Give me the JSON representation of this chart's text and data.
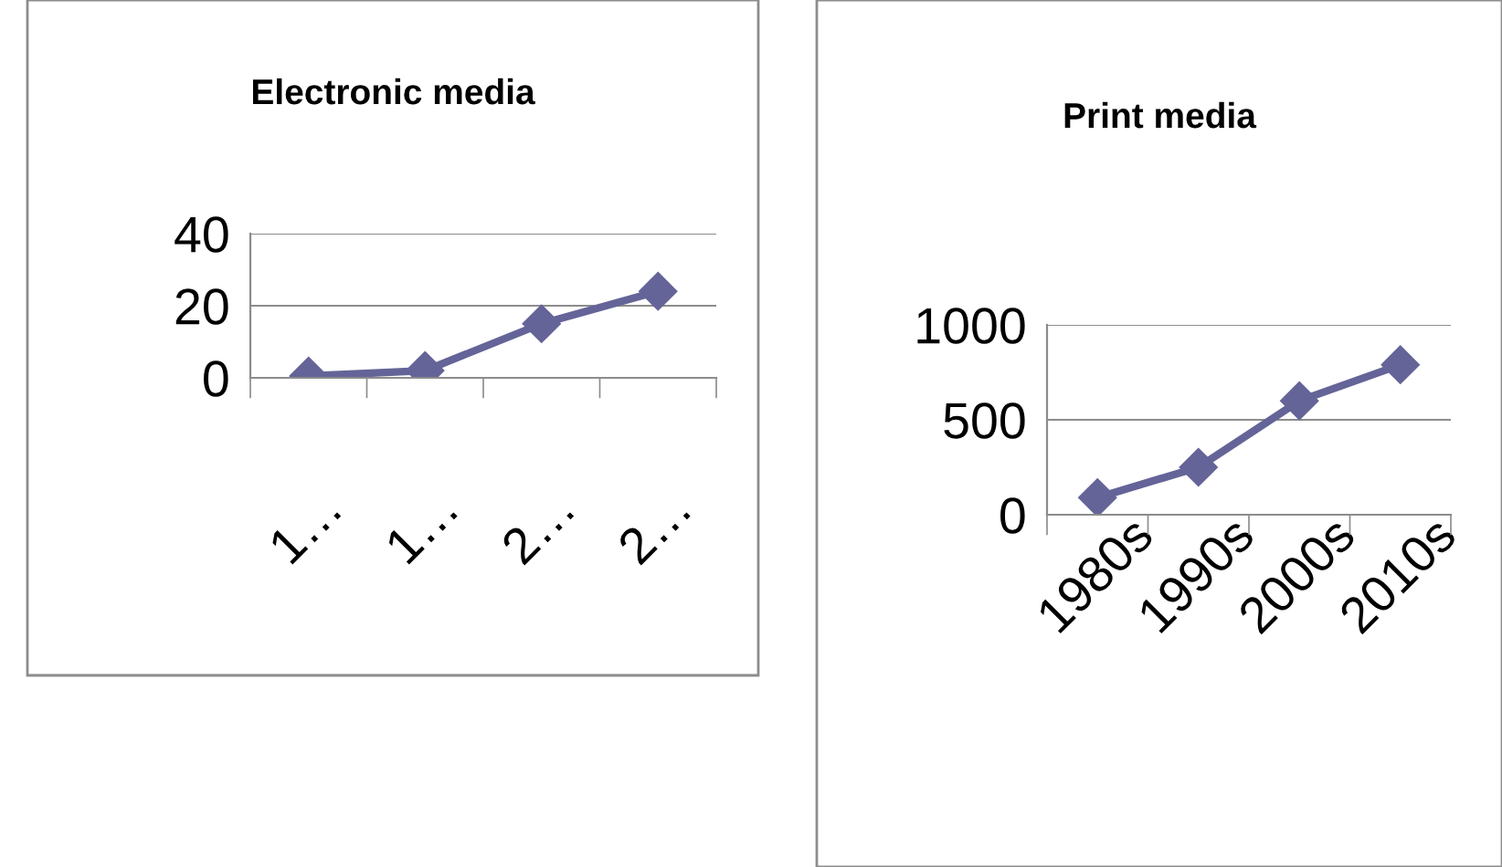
{
  "chart_data": [
    {
      "type": "line",
      "title": "Electronic media",
      "categories": [
        "1…",
        "1…",
        "2…",
        "2…"
      ],
      "series": [
        {
          "color": "#646498",
          "values": [
            0.5,
            2,
            15,
            24
          ]
        }
      ],
      "ylim": [
        0,
        40
      ],
      "yticks": [
        0,
        20,
        40
      ],
      "grid": "y",
      "marker": "diamond",
      "line_style": "solid",
      "legend": false
    },
    {
      "type": "line",
      "title": "Print media",
      "categories": [
        "1980s",
        "1990s",
        "2000s",
        "2010s"
      ],
      "series": [
        {
          "color": "#646498",
          "values": [
            90,
            250,
            600,
            790
          ]
        }
      ],
      "ylim": [
        0,
        1000
      ],
      "yticks": [
        0,
        500,
        1000
      ],
      "grid": "y",
      "marker": "diamond",
      "line_style": "solid",
      "legend": false
    }
  ]
}
